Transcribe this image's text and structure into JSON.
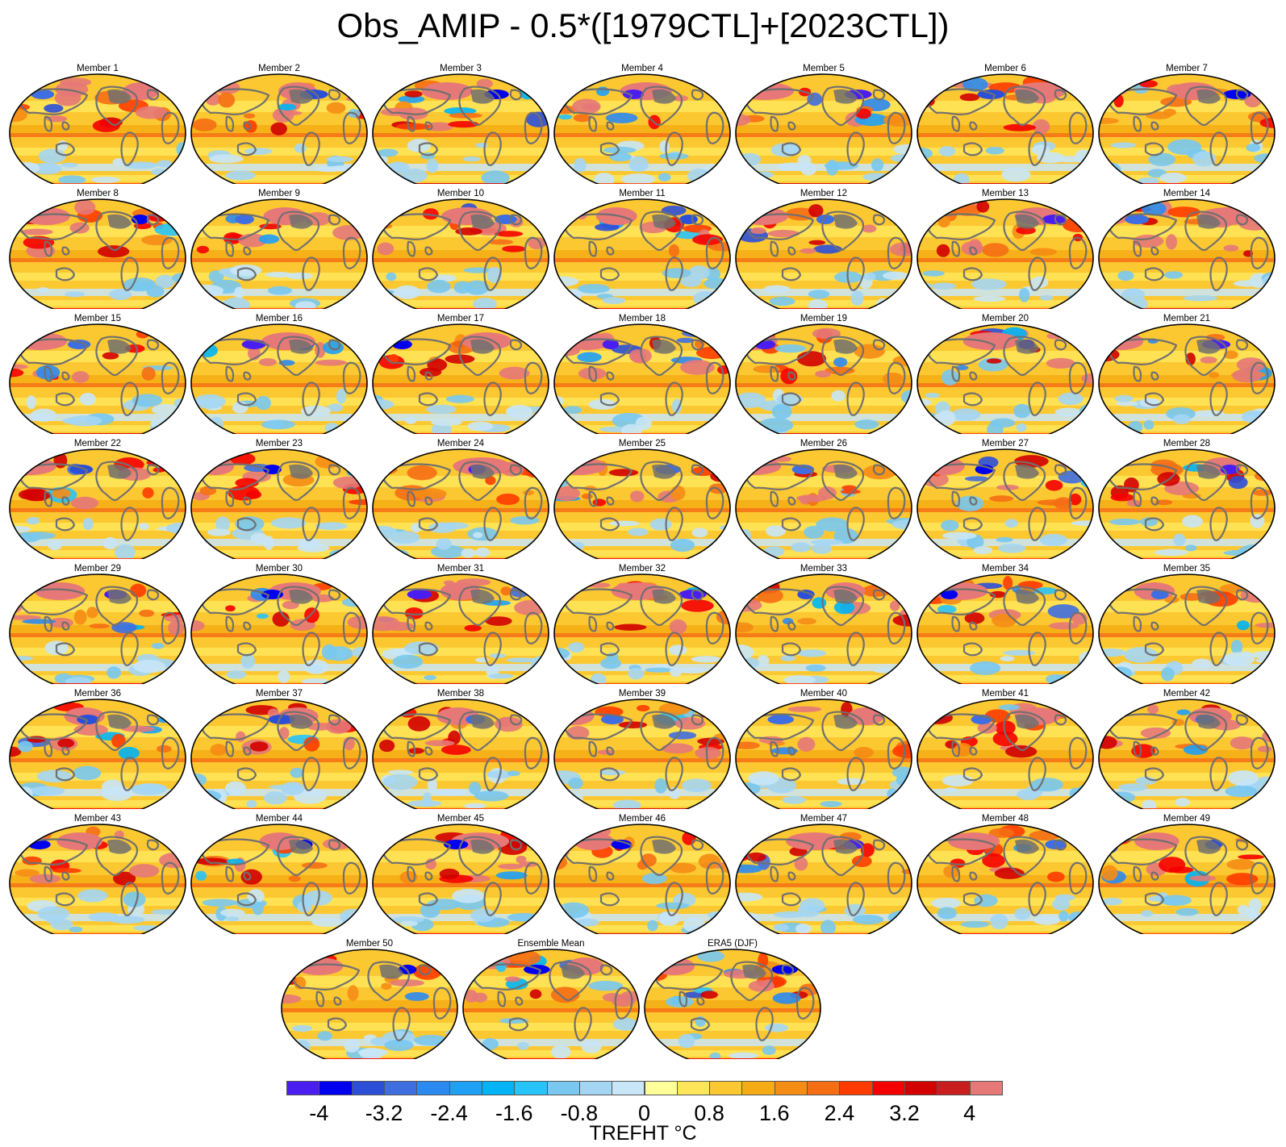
{
  "title": "Obs_AMIP - 0.5*([1979CTL]+[2023CTL])",
  "panels": [
    {
      "label": "Member 1",
      "seed": 1
    },
    {
      "label": "Member 2",
      "seed": 2
    },
    {
      "label": "Member 3",
      "seed": 3
    },
    {
      "label": "Member 4",
      "seed": 4
    },
    {
      "label": "Member 5",
      "seed": 5
    },
    {
      "label": "Member 6",
      "seed": 6
    },
    {
      "label": "Member 7",
      "seed": 7
    },
    {
      "label": "Member 8",
      "seed": 8
    },
    {
      "label": "Member 9",
      "seed": 9
    },
    {
      "label": "Member 10",
      "seed": 10
    },
    {
      "label": "Member 11",
      "seed": 11
    },
    {
      "label": "Member 12",
      "seed": 12
    },
    {
      "label": "Member 13",
      "seed": 13
    },
    {
      "label": "Member 14",
      "seed": 14
    },
    {
      "label": "Member 15",
      "seed": 15
    },
    {
      "label": "Member 16",
      "seed": 16
    },
    {
      "label": "Member 17",
      "seed": 17
    },
    {
      "label": "Member 18",
      "seed": 18
    },
    {
      "label": "Member 19",
      "seed": 19
    },
    {
      "label": "Member 20",
      "seed": 20
    },
    {
      "label": "Member 21",
      "seed": 21
    },
    {
      "label": "Member 22",
      "seed": 22
    },
    {
      "label": "Member 23",
      "seed": 23
    },
    {
      "label": "Member 24",
      "seed": 24
    },
    {
      "label": "Member 25",
      "seed": 25
    },
    {
      "label": "Member 26",
      "seed": 26
    },
    {
      "label": "Member 27",
      "seed": 27
    },
    {
      "label": "Member 28",
      "seed": 28
    },
    {
      "label": "Member 29",
      "seed": 29
    },
    {
      "label": "Member 30",
      "seed": 30
    },
    {
      "label": "Member 31",
      "seed": 31
    },
    {
      "label": "Member 32",
      "seed": 32
    },
    {
      "label": "Member 33",
      "seed": 33
    },
    {
      "label": "Member 34",
      "seed": 34
    },
    {
      "label": "Member 35",
      "seed": 35
    },
    {
      "label": "Member 36",
      "seed": 36
    },
    {
      "label": "Member 37",
      "seed": 37
    },
    {
      "label": "Member 38",
      "seed": 38
    },
    {
      "label": "Member 39",
      "seed": 39
    },
    {
      "label": "Member 40",
      "seed": 40
    },
    {
      "label": "Member 41",
      "seed": 41
    },
    {
      "label": "Member 42",
      "seed": 42
    },
    {
      "label": "Member 43",
      "seed": 43
    },
    {
      "label": "Member 44",
      "seed": 44
    },
    {
      "label": "Member 45",
      "seed": 45
    },
    {
      "label": "Member 46",
      "seed": 46
    },
    {
      "label": "Member 47",
      "seed": 47
    },
    {
      "label": "Member 48",
      "seed": 48
    },
    {
      "label": "Member 49",
      "seed": 49
    },
    {
      "label": "Member 50",
      "seed": 50
    },
    {
      "label": "Ensemble Mean",
      "seed": 51
    },
    {
      "label": "ERA5 (DJF)",
      "seed": 52
    }
  ],
  "colorbar": {
    "title": "TREFHT °C",
    "colors": [
      "#4a1ef0",
      "#0000f0",
      "#2c4fd8",
      "#3f6ee0",
      "#2b8af0",
      "#1ea0f5",
      "#00b4f5",
      "#28c3f8",
      "#78c8ef",
      "#a4d6f4",
      "#c8e6f7",
      "#ffff9a",
      "#ffe55a",
      "#fcc832",
      "#f5ac14",
      "#f58c14",
      "#f56e14",
      "#ff3c00",
      "#f50000",
      "#d20000",
      "#c81e1e",
      "#e67878"
    ],
    "tick_labels": [
      "-4",
      "-3.2",
      "-2.4",
      "-1.6",
      "-0.8",
      "0",
      "0.8",
      "1.6",
      "2.4",
      "3.2",
      "4"
    ]
  },
  "land_color": "#707070",
  "outline_color": "#000000"
}
